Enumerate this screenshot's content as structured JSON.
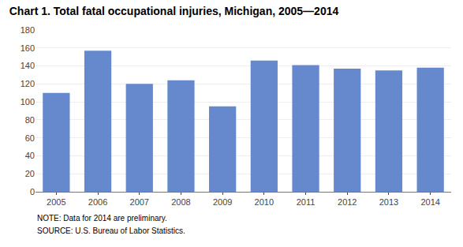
{
  "chart_data": {
    "type": "bar",
    "title": "Chart 1. Total fatal occupational injuries, Michigan, 2005—2014",
    "categories": [
      "2005",
      "2006",
      "2007",
      "2008",
      "2009",
      "2010",
      "2011",
      "2012",
      "2013",
      "2014"
    ],
    "values": [
      110,
      157,
      120,
      124,
      95,
      146,
      141,
      137,
      135,
      138
    ],
    "color": "#6688cc",
    "ylim": [
      0,
      180
    ],
    "yticks": [
      0,
      20,
      40,
      60,
      80,
      100,
      120,
      140,
      160,
      180
    ],
    "grid": true,
    "annotations": [
      "NOTE: Data for 2014 are preliminary.",
      "SOURCE: U.S. Bureau of Labor Statistics."
    ]
  }
}
